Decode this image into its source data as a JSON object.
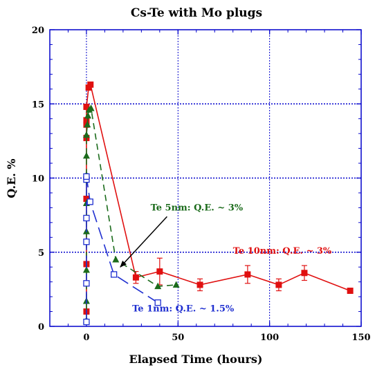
{
  "chart_data": {
    "type": "line",
    "title": "Cs-Te with Mo plugs",
    "xlabel": "Elapsed Time (hours)",
    "ylabel": "Q.E. %",
    "xlim": [
      -20,
      150
    ],
    "ylim": [
      0,
      20
    ],
    "xticks": [
      0,
      50,
      100,
      150
    ],
    "yticks": [
      0,
      5,
      10,
      15,
      20
    ],
    "grid": true,
    "colors": {
      "te10": "#e01010",
      "te5": "#1b6b1b",
      "te1": "#1f2fd0",
      "grid": "#0000cc",
      "axes": "#0000cc"
    },
    "series": [
      {
        "name": "Te 10nm: Q.E. ~ 3%",
        "marker": "filled-square",
        "line": "solid",
        "label_at": [
          80,
          4.9
        ],
        "points": [
          [
            0,
            1.0
          ],
          [
            0,
            4.2
          ],
          [
            0,
            8.6
          ],
          [
            0,
            12.7
          ],
          [
            0,
            13.6
          ],
          [
            0,
            13.9
          ],
          [
            0,
            14.8
          ],
          [
            1.2,
            16.1
          ],
          [
            2.2,
            16.3
          ],
          [
            27,
            3.3
          ],
          [
            40,
            3.7
          ],
          [
            62,
            2.8
          ],
          [
            88,
            3.5
          ],
          [
            105,
            2.8
          ],
          [
            119,
            3.6
          ],
          [
            144,
            2.4
          ]
        ],
        "errors": [
          [
            27,
            0.4
          ],
          [
            40,
            0.9
          ],
          [
            62,
            0.4
          ],
          [
            88,
            0.6
          ],
          [
            105,
            0.4
          ],
          [
            119,
            0.5
          ]
        ]
      },
      {
        "name": "Te 5nm: Q.E. ~ 3%",
        "marker": "filled-triangle",
        "line": "dashed",
        "label_at": [
          35,
          7.8
        ],
        "points": [
          [
            0,
            0.4
          ],
          [
            0,
            1.7
          ],
          [
            0,
            3.8
          ],
          [
            0,
            6.4
          ],
          [
            0,
            8.3
          ],
          [
            0,
            10.2
          ],
          [
            0,
            11.5
          ],
          [
            0,
            12.9
          ],
          [
            0.5,
            13.6
          ],
          [
            0.8,
            14.2
          ],
          [
            1.5,
            14.6
          ],
          [
            2.5,
            14.7
          ],
          [
            16,
            4.5
          ],
          [
            39,
            2.7
          ],
          [
            49,
            2.8
          ]
        ]
      },
      {
        "name": "Te 1nm: Q.E. ~ 1.5%",
        "marker": "open-square",
        "line": "long-dash",
        "label_at": [
          25,
          1.0
        ],
        "points": [
          [
            0,
            0.3
          ],
          [
            0,
            2.9
          ],
          [
            0,
            5.7
          ],
          [
            0,
            7.3
          ],
          [
            0,
            9.9
          ],
          [
            0,
            10.1
          ],
          [
            2.0,
            8.4
          ],
          [
            15,
            3.5
          ],
          [
            39,
            1.6
          ]
        ]
      }
    ],
    "annotations": [
      {
        "type": "arrow",
        "from": [
          44,
          7.4
        ],
        "to": [
          18.5,
          4.0
        ],
        "color": "#000000"
      }
    ]
  }
}
